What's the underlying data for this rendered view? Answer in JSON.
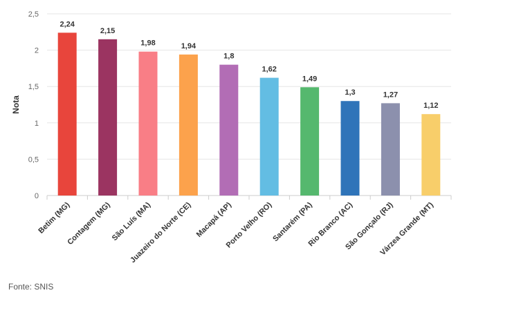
{
  "chart_data": {
    "type": "bar",
    "title": "",
    "xlabel": "",
    "ylabel": "Nota",
    "ylim": [
      0,
      2.5
    ],
    "yticks": [
      "0",
      "0,5",
      "1",
      "1,5",
      "2",
      "2,5"
    ],
    "ytick_values": [
      0,
      0.5,
      1,
      1.5,
      2,
      2.5
    ],
    "grid": true,
    "categories": [
      "Betim (MG)",
      "Contagem (MG)",
      "São Luís (MA)",
      "Juazeiro do Norte (CE)",
      "Macapá (AP)",
      "Porto Velho (RO)",
      "Santarém (PA)",
      "Rio Branco (AC)",
      "São Gonçalo (RJ)",
      "Várzea Grande (MT)"
    ],
    "values": [
      2.24,
      2.15,
      1.98,
      1.94,
      1.8,
      1.62,
      1.49,
      1.3,
      1.27,
      1.12
    ],
    "value_labels": [
      "2,24",
      "2,15",
      "1,98",
      "1,94",
      "1,8",
      "1,62",
      "1,49",
      "1,3",
      "1,27",
      "1,12"
    ],
    "colors": [
      "#e8453c",
      "#9b3461",
      "#f97e86",
      "#fca24c",
      "#b26db5",
      "#63bde3",
      "#55b86e",
      "#2f74b9",
      "#8c90ad",
      "#f8ce6a"
    ]
  },
  "source_text": "Fonte: SNIS"
}
